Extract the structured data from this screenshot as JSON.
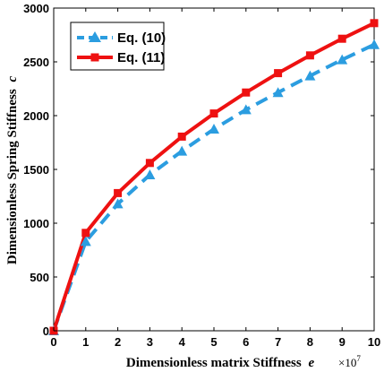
{
  "chart_data": {
    "type": "line",
    "title": "",
    "xlabel": "Dimensionless matrix Stiffness",
    "xlabel_symbol": "e",
    "x_multiplier": "×10",
    "x_multiplier_exp": "7",
    "ylabel": "Dimensionless Spring Stiffness",
    "ylabel_symbol": "c",
    "x": [
      0,
      1,
      2,
      3,
      4,
      5,
      6,
      7,
      8,
      9,
      10
    ],
    "x_ticks": [
      "0",
      "1",
      "2",
      "3",
      "4",
      "5",
      "6",
      "7",
      "8",
      "9",
      "10"
    ],
    "y_ticks": [
      "0",
      "500",
      "1000",
      "1500",
      "2000",
      "2500",
      "3000"
    ],
    "xlim": [
      0,
      10
    ],
    "ylim": [
      0,
      3000
    ],
    "grid": false,
    "legend_position": "top-left",
    "series": [
      {
        "name": "Eq. (10)",
        "color": "#2b9de0",
        "line_style": "dashed",
        "marker": "triangle",
        "values": [
          0,
          830,
          1180,
          1450,
          1670,
          1875,
          2055,
          2215,
          2370,
          2520,
          2660
        ]
      },
      {
        "name": "Eq. (11)",
        "color": "#ee1111",
        "line_style": "solid",
        "marker": "square",
        "values": [
          0,
          910,
          1280,
          1560,
          1805,
          2020,
          2215,
          2395,
          2560,
          2715,
          2860
        ]
      }
    ]
  }
}
